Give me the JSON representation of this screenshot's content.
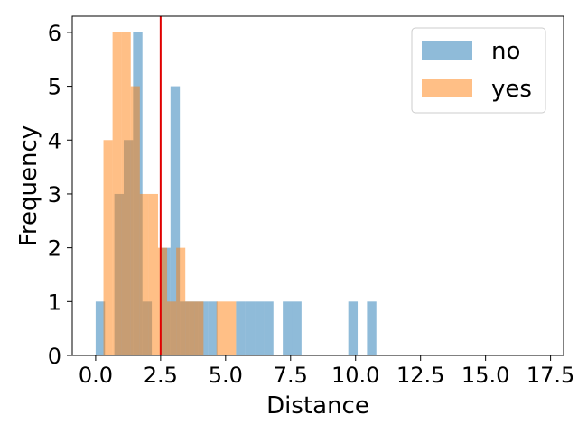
{
  "chart_data": {
    "type": "bar",
    "title": "",
    "xlabel": "Distance",
    "ylabel": "Frequency",
    "xlim": [
      -0.9,
      18.0
    ],
    "ylim": [
      0,
      6.3
    ],
    "xticks": [
      "0.0",
      "2.5",
      "5.0",
      "7.5",
      "10.0",
      "12.5",
      "15.0",
      "17.5"
    ],
    "yticks": [
      "0",
      "1",
      "2",
      "3",
      "4",
      "5",
      "6"
    ],
    "grid": false,
    "legend": {
      "placement": "top-right"
    },
    "series": [
      {
        "name": "no",
        "color": "#1f77b4",
        "opacity": 0.5,
        "bins": [
          {
            "x0": 0.0,
            "x1": 0.36,
            "count": 1
          },
          {
            "x0": 0.72,
            "x1": 1.08,
            "count": 3
          },
          {
            "x0": 1.08,
            "x1": 1.44,
            "count": 4
          },
          {
            "x0": 1.44,
            "x1": 1.8,
            "count": 6
          },
          {
            "x0": 1.8,
            "x1": 2.16,
            "count": 1
          },
          {
            "x0": 2.52,
            "x1": 2.88,
            "count": 2
          },
          {
            "x0": 2.88,
            "x1": 3.24,
            "count": 5
          },
          {
            "x0": 3.24,
            "x1": 3.6,
            "count": 1
          },
          {
            "x0": 3.6,
            "x1": 3.96,
            "count": 1
          },
          {
            "x0": 3.96,
            "x1": 4.32,
            "count": 1
          },
          {
            "x0": 4.32,
            "x1": 4.68,
            "count": 1
          },
          {
            "x0": 5.4,
            "x1": 5.76,
            "count": 1
          },
          {
            "x0": 5.76,
            "x1": 6.12,
            "count": 1
          },
          {
            "x0": 6.12,
            "x1": 6.48,
            "count": 1
          },
          {
            "x0": 6.48,
            "x1": 6.84,
            "count": 1
          },
          {
            "x0": 7.2,
            "x1": 7.56,
            "count": 1
          },
          {
            "x0": 7.56,
            "x1": 7.92,
            "count": 1
          },
          {
            "x0": 9.72,
            "x1": 10.08,
            "count": 1
          },
          {
            "x0": 10.44,
            "x1": 10.8,
            "count": 1
          }
        ]
      },
      {
        "name": "yes",
        "color": "#ff7f0e",
        "opacity": 0.5,
        "bins": [
          {
            "x0": 0.3,
            "x1": 0.65,
            "count": 4
          },
          {
            "x0": 0.65,
            "x1": 1.0,
            "count": 6
          },
          {
            "x0": 1.0,
            "x1": 1.35,
            "count": 6
          },
          {
            "x0": 1.35,
            "x1": 1.7,
            "count": 5
          },
          {
            "x0": 1.7,
            "x1": 2.05,
            "count": 3
          },
          {
            "x0": 2.05,
            "x1": 2.4,
            "count": 3
          },
          {
            "x0": 2.4,
            "x1": 2.75,
            "count": 2
          },
          {
            "x0": 2.75,
            "x1": 3.1,
            "count": 1
          },
          {
            "x0": 3.1,
            "x1": 3.45,
            "count": 2
          },
          {
            "x0": 3.45,
            "x1": 3.8,
            "count": 1
          },
          {
            "x0": 3.8,
            "x1": 4.15,
            "count": 1
          },
          {
            "x0": 4.65,
            "x1": 5.4,
            "count": 1
          }
        ]
      }
    ],
    "reference_line": {
      "x": 2.5,
      "color": "#e00000"
    }
  }
}
